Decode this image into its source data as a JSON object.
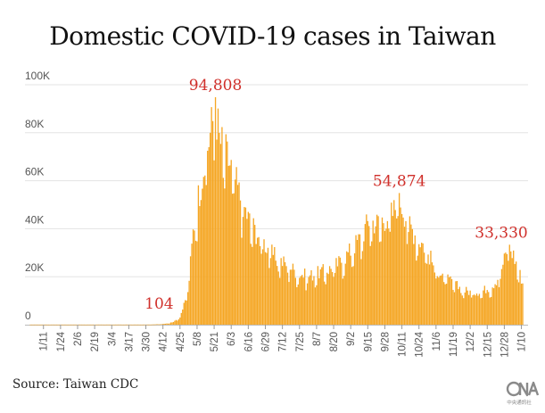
{
  "title": "Domestic COVID-19 cases in Taiwan",
  "source": "Source: Taiwan CDC",
  "logo_text": "中央通訊社",
  "colors": {
    "bar": "#F5A623",
    "annotation": "#D0302B",
    "grid": "#e3e3e3",
    "axis_text": "#555555"
  },
  "chart_data": {
    "type": "bar",
    "ylim": [
      0,
      100000
    ],
    "yticks": [
      {
        "value": 0,
        "label": "0"
      },
      {
        "value": 20000,
        "label": "20K"
      },
      {
        "value": 40000,
        "label": "40K"
      },
      {
        "value": 60000,
        "label": "60K"
      },
      {
        "value": 80000,
        "label": "80K"
      },
      {
        "value": 100000,
        "label": "100K"
      }
    ],
    "xticks": [
      "1/11",
      "1/24",
      "2/6",
      "2/19",
      "3/4",
      "3/17",
      "3/30",
      "4/12",
      "4/25",
      "5/8",
      "5/21",
      "6/3",
      "6/16",
      "6/29",
      "7/12",
      "7/25",
      "8/7",
      "8/20",
      "9/2",
      "9/15",
      "9/28",
      "10/11",
      "10/24",
      "11/6",
      "11/19",
      "12/2",
      "12/15",
      "12/28",
      "1/10"
    ],
    "xtick_days": [
      10,
      23,
      36,
      49,
      62,
      75,
      88,
      101,
      114,
      127,
      140,
      153,
      166,
      179,
      192,
      205,
      218,
      231,
      244,
      257,
      270,
      283,
      296,
      309,
      322,
      335,
      348,
      361,
      374
    ],
    "start_date": "2022-01-01",
    "key_points": [
      [
        0,
        60
      ],
      [
        88,
        60
      ],
      [
        94,
        104
      ],
      [
        100,
        250
      ],
      [
        106,
        700
      ],
      [
        110,
        1500
      ],
      [
        114,
        3500
      ],
      [
        118,
        10000
      ],
      [
        121,
        20000
      ],
      [
        124,
        40000
      ],
      [
        128,
        55000
      ],
      [
        132,
        68000
      ],
      [
        136,
        80000
      ],
      [
        139,
        88000
      ],
      [
        141,
        94808
      ],
      [
        144,
        80000
      ],
      [
        148,
        75000
      ],
      [
        153,
        68000
      ],
      [
        160,
        55000
      ],
      [
        166,
        46000
      ],
      [
        172,
        40000
      ],
      [
        180,
        34000
      ],
      [
        188,
        28000
      ],
      [
        196,
        26000
      ],
      [
        204,
        22000
      ],
      [
        212,
        21000
      ],
      [
        220,
        22500
      ],
      [
        228,
        24000
      ],
      [
        236,
        27000
      ],
      [
        244,
        32000
      ],
      [
        252,
        38000
      ],
      [
        258,
        45000
      ],
      [
        264,
        44000
      ],
      [
        270,
        46000
      ],
      [
        276,
        48000
      ],
      [
        281,
        54874
      ],
      [
        286,
        47000
      ],
      [
        292,
        40000
      ],
      [
        300,
        34000
      ],
      [
        308,
        25000
      ],
      [
        316,
        20000
      ],
      [
        324,
        17000
      ],
      [
        330,
        15000
      ],
      [
        336,
        14000
      ],
      [
        344,
        14500
      ],
      [
        352,
        17000
      ],
      [
        356,
        20000
      ],
      [
        360,
        26000
      ],
      [
        363,
        32000
      ],
      [
        365,
        33330
      ],
      [
        368,
        30000
      ],
      [
        371,
        25000
      ],
      [
        374,
        20000
      ],
      [
        375,
        18000
      ]
    ],
    "annotations": [
      {
        "day": 94,
        "value": 104,
        "label": "104"
      },
      {
        "day": 141,
        "value": 94808,
        "label": "94,808"
      },
      {
        "day": 281,
        "value": 54874,
        "label": "54,874"
      },
      {
        "day": 365,
        "value": 33330,
        "label": "33,330"
      }
    ]
  }
}
